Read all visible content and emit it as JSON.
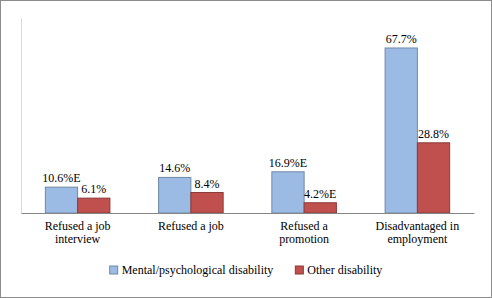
{
  "chart_data": {
    "type": "bar",
    "categories": [
      "Refused a job interview",
      "Refused a job",
      "Refused a promotion",
      "Disadvantaged in employment"
    ],
    "series": [
      {
        "name": "Mental/psychological disability",
        "color": "#9bbbe4",
        "values": [
          10.6,
          14.6,
          16.9,
          67.7
        ],
        "value_labels": [
          "10.6%E",
          "14.6%",
          "16.9%E",
          "67.7%"
        ]
      },
      {
        "name": "Other disability",
        "color": "#c0504d",
        "values": [
          6.1,
          8.4,
          4.2,
          28.8
        ],
        "value_labels": [
          "6.1%",
          "8.4%",
          "4.2%E",
          "28.8%"
        ]
      }
    ],
    "ylim": [
      0,
      80
    ],
    "data_labels": true,
    "tick_labels": "x",
    "legend": "bottom",
    "grid": false
  }
}
